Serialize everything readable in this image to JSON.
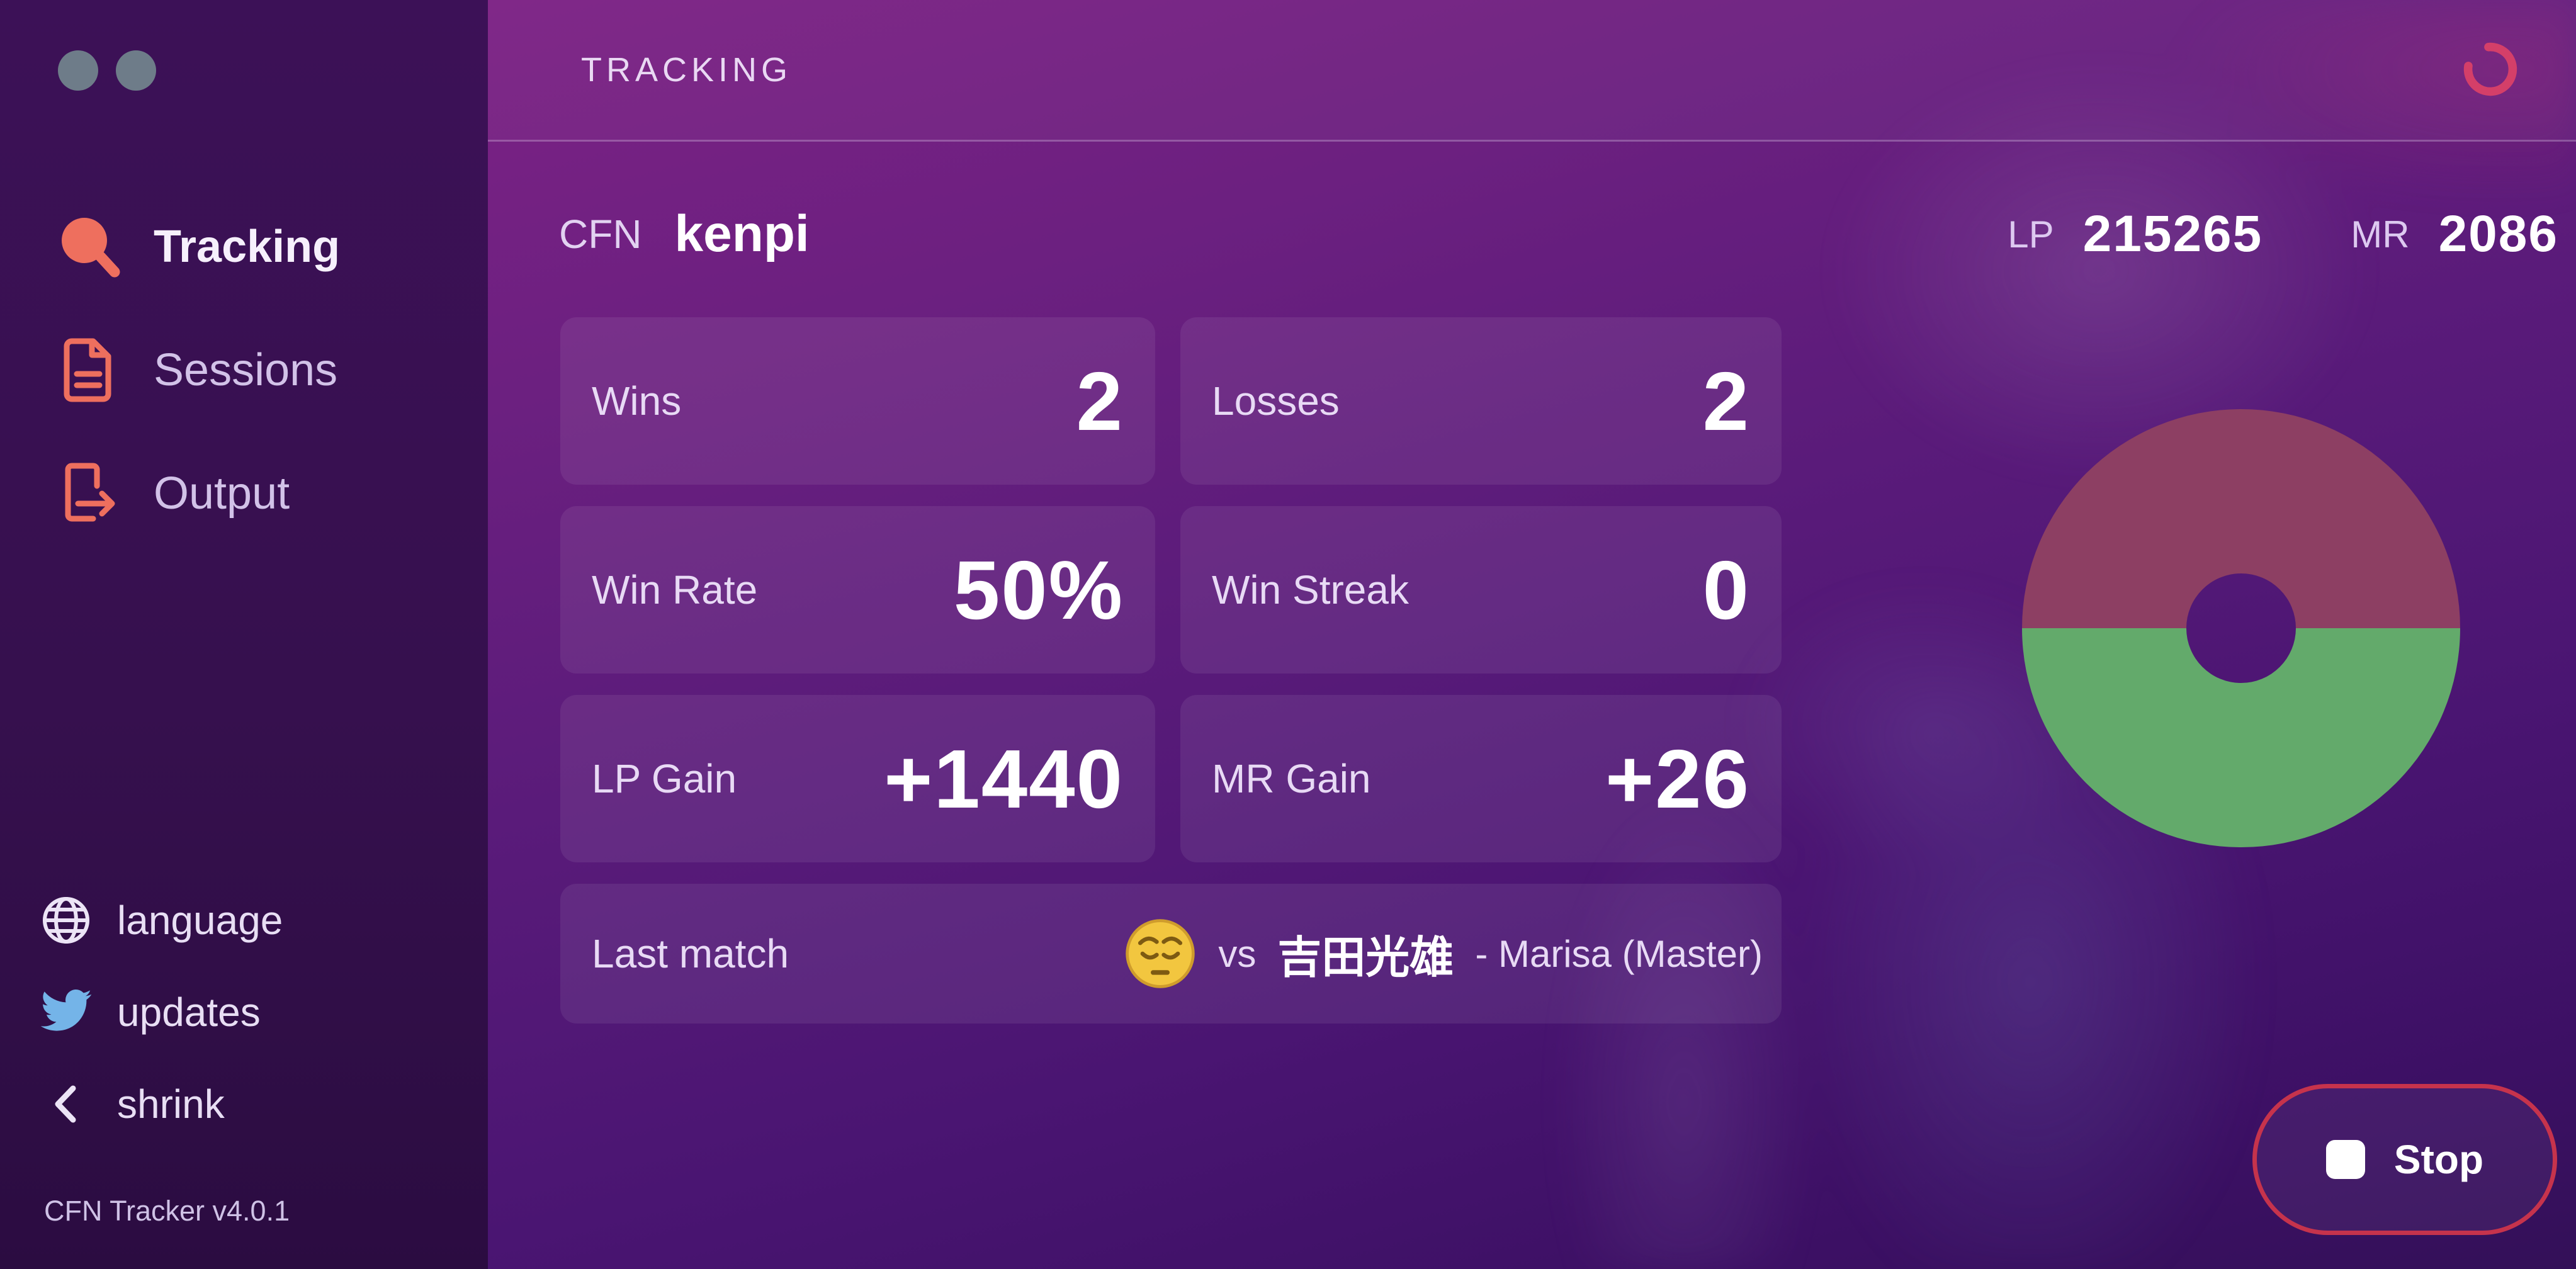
{
  "header": {
    "title": "TRACKING"
  },
  "sidebar": {
    "items": [
      {
        "label": "Tracking",
        "icon": "search-icon",
        "active": true
      },
      {
        "label": "Sessions",
        "icon": "document-icon",
        "active": false
      },
      {
        "label": "Output",
        "icon": "export-icon",
        "active": false
      }
    ],
    "footer_items": [
      {
        "label": "language",
        "icon": "globe-icon"
      },
      {
        "label": "updates",
        "icon": "twitter-icon"
      },
      {
        "label": "shrink",
        "icon": "chevron-left-icon"
      }
    ],
    "version": "CFN Tracker v4.0.1"
  },
  "profile": {
    "cfn_label": "CFN",
    "username": "kenpi",
    "lp_label": "LP",
    "lp_value": "215265",
    "mr_label": "MR",
    "mr_value": "2086"
  },
  "stats": [
    {
      "label": "Wins",
      "value": "2"
    },
    {
      "label": "Losses",
      "value": "2"
    },
    {
      "label": "Win Rate",
      "value": "50%"
    },
    {
      "label": "Win Streak",
      "value": "0"
    },
    {
      "label": "LP Gain",
      "value": "+1440"
    },
    {
      "label": "MR Gain",
      "value": "+26"
    }
  ],
  "last_match": {
    "label": "Last match",
    "result_emoji": "pensive-face",
    "vs_label": "vs",
    "opponent": "吉田光雄",
    "detail": "- Marisa (Master)"
  },
  "actions": {
    "stop_label": "Stop"
  },
  "chart_data": {
    "type": "pie",
    "title": "Win/Loss donut",
    "labels": [
      "Wins",
      "Losses"
    ],
    "values": [
      2,
      2
    ],
    "colors": [
      "#63aa6b",
      "#8d3f63"
    ],
    "inner_radius_ratio": 0.25,
    "legend": "none"
  },
  "colors": {
    "accent_coral": "#ee6f5e",
    "twitter_blue": "#74b4e8",
    "stop_red": "#c6334c",
    "spinner_pink": "#d43f69",
    "donut_green": "#63aa6b",
    "donut_red": "#8d3f63",
    "sidebar_bg": "#36104e",
    "main_bg_top": "#7c2285",
    "main_bg_bottom": "#331058"
  }
}
